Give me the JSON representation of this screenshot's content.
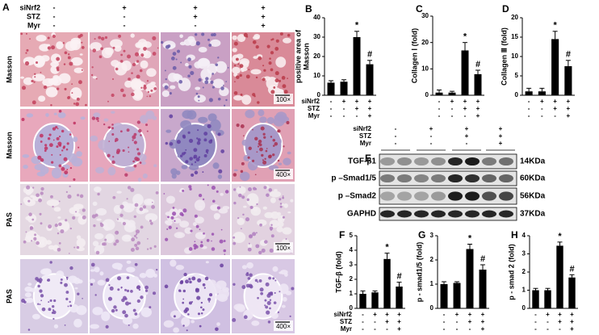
{
  "panel_a": {
    "panel": "A",
    "conditions": [
      {
        "label": "siNrf2",
        "signs": [
          "-",
          "+",
          "+",
          "+"
        ]
      },
      {
        "label": "STZ",
        "signs": [
          "-",
          "-",
          "+",
          "+"
        ]
      },
      {
        "label": "Myr",
        "signs": [
          "-",
          "-",
          "-",
          "+"
        ]
      }
    ],
    "rows": [
      {
        "stain": "Masson",
        "scale": "100×"
      },
      {
        "stain": "Masson",
        "scale": "400×"
      },
      {
        "stain": "PAS",
        "scale": "100×"
      },
      {
        "stain": "PAS",
        "scale": "400×"
      }
    ]
  },
  "panel_e": {
    "panel": "E",
    "conditions": [
      {
        "label": "siNrf2",
        "signs": [
          "-",
          "+",
          "+",
          "+"
        ]
      },
      {
        "label": "STZ",
        "signs": [
          "-",
          "-",
          "+",
          "+"
        ]
      },
      {
        "label": "Myr",
        "signs": [
          "-",
          "-",
          "-",
          "+"
        ]
      }
    ],
    "rows": [
      {
        "protein": "TGF-β1",
        "size": "14KDa"
      },
      {
        "protein": "p –Smad1/5",
        "size": "60KDa"
      },
      {
        "protein": "p –Smad2",
        "size": "56KDa"
      },
      {
        "protein": "GAPHD",
        "size": "37KDa"
      }
    ]
  },
  "chart_data": [
    {
      "type": "bar",
      "panel": "B",
      "ylabel": [
        "positive area of",
        "Masson"
      ],
      "color": "#000000",
      "values": [
        6.5,
        7,
        30,
        16
      ],
      "errors": [
        1,
        1,
        3,
        2
      ],
      "markers": {
        "2": "*",
        "3": "#"
      },
      "ylim": [
        0,
        40
      ],
      "yticks": [
        0,
        10,
        20,
        30,
        40
      ],
      "grid": false,
      "conditions": [
        {
          "label": "siNrf2",
          "signs": [
            "-",
            "+",
            "+",
            "+"
          ]
        },
        {
          "label": "STZ",
          "signs": [
            "-",
            "-",
            "+",
            "+"
          ]
        },
        {
          "label": "Myr",
          "signs": [
            "-",
            "-",
            "-",
            "+"
          ]
        }
      ]
    },
    {
      "type": "bar",
      "panel": "C",
      "ylabel": [
        "Collagen Ⅰ (fold)"
      ],
      "color": "#000000",
      "values": [
        1,
        1,
        17,
        8
      ],
      "errors": [
        1,
        0.5,
        3,
        1.5
      ],
      "markers": {
        "2": "*",
        "3": "#"
      },
      "ylim": [
        0,
        30
      ],
      "yticks": [
        0,
        10,
        20,
        30
      ],
      "grid": false,
      "conditions": [
        {
          "signs": [
            "-",
            "+",
            "+",
            "+"
          ]
        },
        {
          "signs": [
            "-",
            "-",
            "+",
            "+"
          ]
        },
        {
          "signs": [
            "-",
            "-",
            "-",
            "+"
          ]
        }
      ]
    },
    {
      "type": "bar",
      "panel": "D",
      "ylabel": [
        "Collagen Ⅲ (fold)"
      ],
      "color": "#000000",
      "values": [
        1,
        1,
        14.5,
        7.5
      ],
      "errors": [
        0.8,
        0.8,
        2,
        1.5
      ],
      "markers": {
        "2": "*",
        "3": "#"
      },
      "ylim": [
        0,
        20
      ],
      "yticks": [
        0,
        5,
        10,
        15,
        20
      ],
      "grid": false,
      "conditions": [
        {
          "signs": [
            "-",
            "+",
            "+",
            "+"
          ]
        },
        {
          "signs": [
            "-",
            "-",
            "+",
            "+"
          ]
        },
        {
          "signs": [
            "-",
            "-",
            "-",
            "+"
          ]
        }
      ]
    },
    {
      "type": "bar",
      "panel": "F",
      "ylabel": [
        "TGF-β (fold)"
      ],
      "color": "#000000",
      "values": [
        1,
        1.1,
        3.4,
        1.5
      ],
      "errors": [
        0.2,
        0.1,
        0.4,
        0.3
      ],
      "markers": {
        "2": "*",
        "3": "#"
      },
      "ylim": [
        0,
        5
      ],
      "yticks": [
        0,
        1,
        2,
        3,
        4,
        5
      ],
      "grid": false,
      "conditions": [
        {
          "label": "siNrf2",
          "signs": [
            "-",
            "+",
            "+",
            "+"
          ]
        },
        {
          "label": "STZ",
          "signs": [
            "-",
            "-",
            "+",
            "+"
          ]
        },
        {
          "label": "Myr",
          "signs": [
            "-",
            "-",
            "-",
            "+"
          ]
        }
      ]
    },
    {
      "type": "bar",
      "panel": "G",
      "ylabel": [
        "p - smad1/5 (fold)"
      ],
      "color": "#000000",
      "values": [
        1,
        1.05,
        2.45,
        1.6
      ],
      "errors": [
        0.1,
        0.05,
        0.2,
        0.2
      ],
      "markers": {
        "2": "*",
        "3": "#"
      },
      "ylim": [
        0,
        3
      ],
      "yticks": [
        0,
        1,
        2,
        3
      ],
      "grid": false,
      "conditions": [
        {
          "signs": [
            "-",
            "+",
            "+",
            "+"
          ]
        },
        {
          "signs": [
            "-",
            "-",
            "+",
            "+"
          ]
        },
        {
          "signs": [
            "-",
            "-",
            "-",
            "+"
          ]
        }
      ]
    },
    {
      "type": "bar",
      "panel": "H",
      "ylabel": [
        "p - smad 2 (fold)"
      ],
      "color": "#000000",
      "values": [
        1,
        1,
        3.45,
        1.7
      ],
      "errors": [
        0.1,
        0.1,
        0.2,
        0.15
      ],
      "markers": {
        "2": "*",
        "3": "#"
      },
      "ylim": [
        0,
        4
      ],
      "yticks": [
        0,
        1,
        2,
        3,
        4
      ],
      "grid": false,
      "conditions": [
        {
          "signs": [
            "-",
            "+",
            "+",
            "+"
          ]
        },
        {
          "signs": [
            "-",
            "-",
            "+",
            "+"
          ]
        },
        {
          "signs": [
            "-",
            "-",
            "-",
            "+"
          ]
        }
      ]
    }
  ]
}
